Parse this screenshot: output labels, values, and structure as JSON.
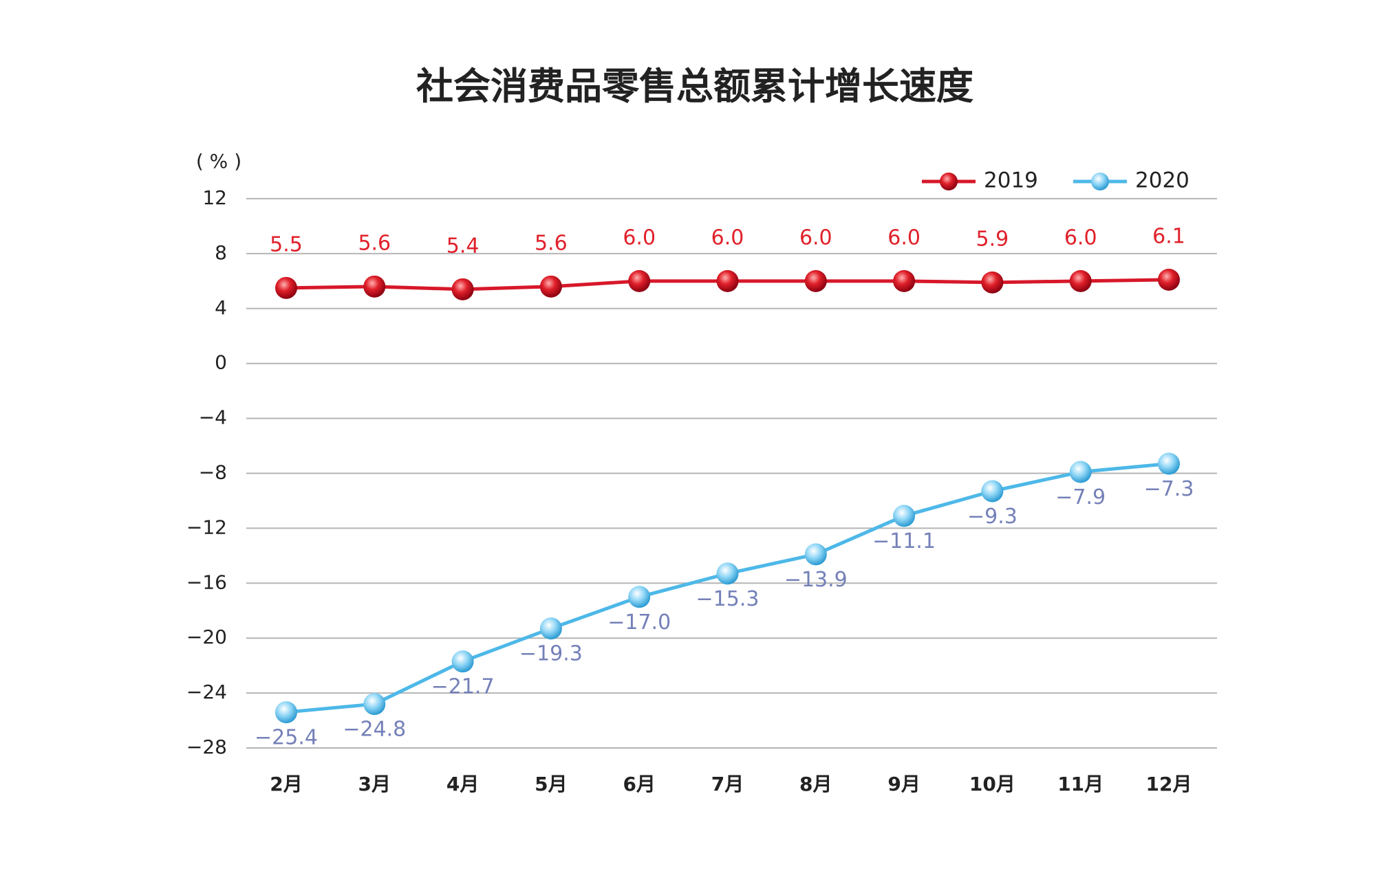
{
  "chart_data": {
    "type": "line",
    "title": "社会消费品零售总额累计增长速度",
    "y_label": "( % )",
    "categories": [
      "2月",
      "3月",
      "4月",
      "5月",
      "6月",
      "7月",
      "8月",
      "9月",
      "10月",
      "11月",
      "12月"
    ],
    "series": [
      {
        "name": "2019",
        "color": "#d7182a",
        "values": [
          5.5,
          5.6,
          5.4,
          5.6,
          6.0,
          6.0,
          6.0,
          6.0,
          5.9,
          6.0,
          6.1
        ],
        "value_labels": [
          "5.5",
          "5.6",
          "5.4",
          "5.6",
          "6.0",
          "6.0",
          "6.0",
          "6.0",
          "5.9",
          "6.0",
          "6.1"
        ]
      },
      {
        "name": "2020",
        "color": "#4db8e8",
        "values": [
          -25.4,
          -24.8,
          -21.7,
          -19.3,
          -17.0,
          -15.3,
          -13.9,
          -11.1,
          -9.3,
          -7.9,
          -7.3
        ],
        "value_labels": [
          "−25.4",
          "−24.8",
          "−21.7",
          "−19.3",
          "−17.0",
          "−15.3",
          "−13.9",
          "−11.1",
          "−9.3",
          "−7.9",
          "−7.3"
        ]
      }
    ],
    "ylim": [
      -28,
      12
    ],
    "yticks": [
      {
        "value": -28,
        "label": "−28"
      },
      {
        "value": -24,
        "label": "−24"
      },
      {
        "value": -20,
        "label": "−20"
      },
      {
        "value": -16,
        "label": "−16"
      },
      {
        "value": -12,
        "label": "−12"
      },
      {
        "value": -8,
        "label": "−8"
      },
      {
        "value": -4,
        "label": "−4"
      },
      0,
      4,
      8,
      12
    ],
    "grid": true,
    "legend": "top-right"
  }
}
